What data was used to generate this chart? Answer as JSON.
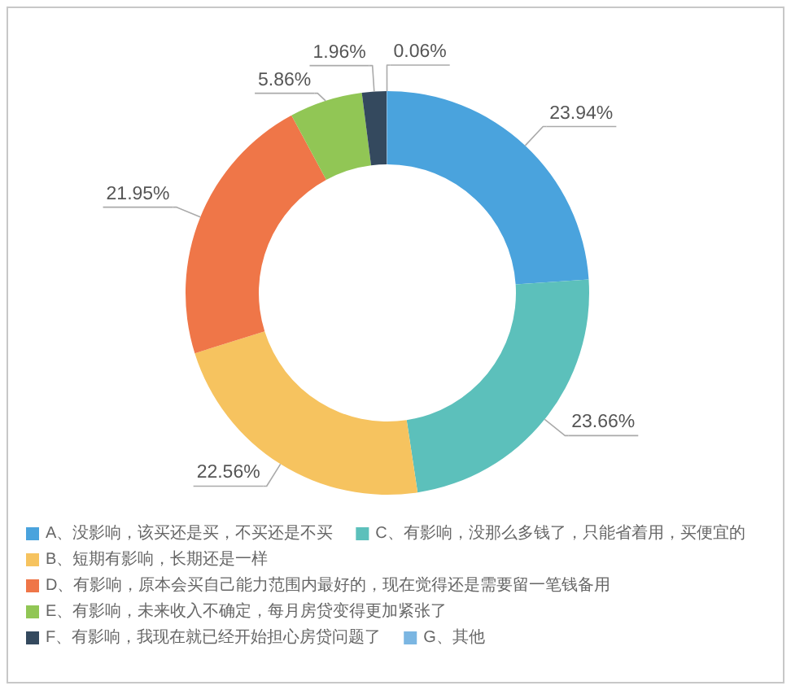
{
  "chart_data": {
    "type": "donut",
    "categories": [
      "A、没影响，该买还是买，不买还是不买",
      "C、有影响，没那么多钱了，只能省着用，买便宜的",
      "B、短期有影响，长期还是一样",
      "D、有影响，原本会买自己能力范围内最好的，现在觉得还是需要留一笔钱备用",
      "E、有影响，未来收入不确定，每月房贷变得更加紧张了",
      "F、有影响，我现在就已经开始担心房贷问题了",
      "G、其他"
    ],
    "values": [
      23.94,
      23.66,
      22.56,
      21.95,
      5.86,
      1.96,
      0.06
    ],
    "value_labels": [
      "23.94%",
      "23.66%",
      "22.56%",
      "21.95%",
      "5.86%",
      "1.96%",
      "0.06%"
    ],
    "colors": [
      "#4aa3dd",
      "#5cc0bb",
      "#f6c35f",
      "#ef7648",
      "#91c655",
      "#34495e",
      "#7bb6e2"
    ],
    "legend": "bottom"
  }
}
